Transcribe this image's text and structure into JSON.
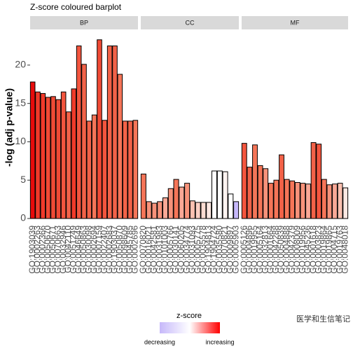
{
  "chart_data": {
    "type": "bar",
    "title": "Z-score coloured barplot",
    "ylabel": "-log (adj p-value)",
    "ylim": [
      -0.55,
      24.65
    ],
    "yticks": [
      0,
      5,
      10,
      15,
      20
    ],
    "facets": [
      {
        "name": "BP",
        "categories": [
          "GO:1903039",
          "GO:0002263",
          "GO:0002366",
          "GO:0050670",
          "GO:0050671",
          "GO:0070663",
          "GO:0032946",
          "GO:0042110",
          "GO:0051249",
          "GO:0046649",
          "GO:0050863",
          "GO:0030098",
          "GO:0002694",
          "GO:0007159",
          "GO:0022407",
          "GO:0002683",
          "GO:1903037",
          "GO:0050870",
          "GO:0098609",
          "GO:0045785",
          "GO:0002696"
        ],
        "values": [
          17.8,
          16.5,
          16.3,
          15.8,
          15.9,
          15.5,
          16.5,
          13.9,
          16.9,
          22.5,
          20.1,
          12.7,
          13.5,
          23.3,
          12.8,
          22.5,
          22.5,
          18.8,
          12.7,
          12.7,
          12.8
        ],
        "colors": [
          "#e80c0c",
          "#f03a2a",
          "#f03a2a",
          "#f04a35",
          "#f04a35",
          "#f04a35",
          "#f3553e",
          "#f26248",
          "#f03a2a",
          "#f3553e",
          "#f26248",
          "#f26248",
          "#f57558",
          "#f04a35",
          "#f3553e",
          "#f26248",
          "#f26248",
          "#f57558",
          "#f26248",
          "#f26248",
          "#f57558"
        ]
      },
      {
        "name": "CC",
        "categories": [
          "GO:0070820",
          "GO:0016021",
          "GO:0042581",
          "GO:0031983",
          "GO:0101003",
          "GO:0005766",
          "GO:0030141",
          "GO:0060205",
          "GO:0034774",
          "GO:0031093",
          "GO:0005775",
          "GO:0035578",
          "GO:1904813",
          "GO:1904724",
          "GO:0035580",
          "GO:0070821",
          "GO:0009897",
          "GO:0005903"
        ],
        "values": [
          5.8,
          2.2,
          2.0,
          2.2,
          2.7,
          3.9,
          5.1,
          4.1,
          4.6,
          2.3,
          2.1,
          2.1,
          2.1,
          6.2,
          6.2,
          6.1,
          3.2,
          2.2
        ],
        "colors": [
          "#f57558",
          "#f7927a",
          "#f7927a",
          "#f7927a",
          "#f9a896",
          "#f7927a",
          "#f57558",
          "#f9a896",
          "#f7927a",
          "#fbc0b0",
          "#fbd0c4",
          "#fcdcd2",
          "#fde8e2",
          "#ffffff",
          "#ffffff",
          "#fff4f1",
          "#ffffff",
          "#c6b8fa"
        ]
      },
      {
        "name": "MF",
        "categories": [
          "GO:0005126",
          "GO:0004896",
          "GO:0019955",
          "GO:0005164",
          "GO:0032813",
          "GO:0001664",
          "GO:0042288",
          "GO:0050839",
          "GO:0004888",
          "GO:0042379",
          "GO:0008009",
          "GO:0019956",
          "GO:0045236",
          "GO:0001618",
          "GO:0003823",
          "GO:0019864",
          "GO:0019865",
          "GO:0004715",
          "GO:0019763",
          "GO:0048018"
        ],
        "values": [
          9.8,
          6.7,
          9.6,
          6.9,
          6.5,
          4.6,
          5.0,
          8.3,
          5.1,
          4.9,
          4.7,
          4.6,
          4.5,
          9.9,
          9.7,
          5.1,
          4.4,
          4.5,
          4.6,
          4.0
        ],
        "colors": [
          "#f3553e",
          "#f26248",
          "#f57558",
          "#f57558",
          "#f7927a",
          "#f57558",
          "#f57558",
          "#f26248",
          "#f57558",
          "#f57558",
          "#f7927a",
          "#f7927a",
          "#f9a896",
          "#f26248",
          "#f3553e",
          "#f57558",
          "#f7927a",
          "#f9a896",
          "#fbc0b0",
          "#fde8e2"
        ]
      }
    ],
    "legend": {
      "title": "z-score",
      "labels": [
        "decreasing",
        "increasing"
      ],
      "colors": [
        "#c6b8fa",
        "#ffffff",
        "#ff0000"
      ]
    }
  },
  "watermark": "医学和生信笔记"
}
